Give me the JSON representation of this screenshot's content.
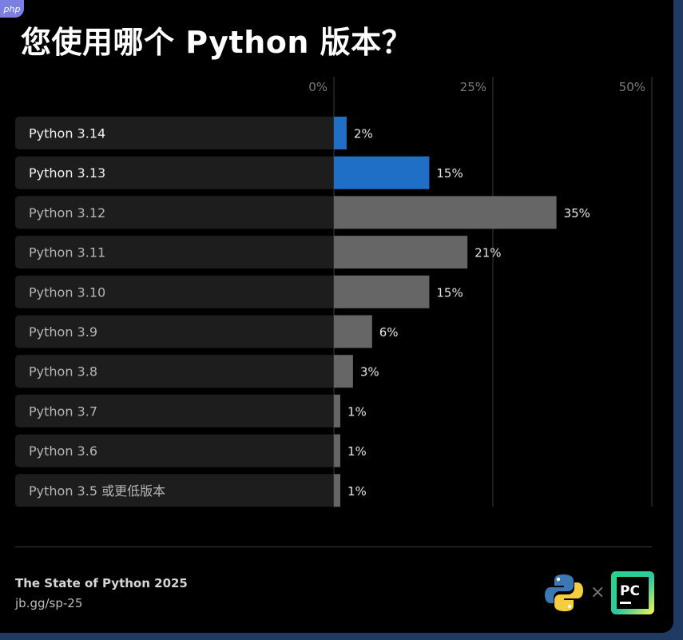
{
  "corner_logo": "php",
  "title": "您使用哪个 Python 版本？",
  "chart_data": {
    "type": "bar",
    "orientation": "horizontal",
    "title": "您使用哪个 Python 版本？",
    "xlim": [
      0,
      50
    ],
    "xticks": [
      "0%",
      "25%",
      "50%"
    ],
    "xtick_values": [
      0,
      25,
      50
    ],
    "categories": [
      "Python 3.14",
      "Python 3.13",
      "Python 3.12",
      "Python 3.11",
      "Python 3.10",
      "Python 3.9",
      "Python 3.8",
      "Python 3.7",
      "Python 3.6",
      "Python 3.5 或更低版本"
    ],
    "values": [
      2,
      15,
      35,
      21,
      15,
      6,
      3,
      1,
      1,
      1
    ],
    "value_labels": [
      "2%",
      "15%",
      "35%",
      "21%",
      "15%",
      "6%",
      "3%",
      "1%",
      "1%",
      "1%"
    ],
    "highlighted": [
      true,
      true,
      false,
      false,
      false,
      false,
      false,
      false,
      false,
      false
    ],
    "colors": {
      "highlight": "#1f6fc6",
      "default": "#666666",
      "row_background": "#1d1d1d",
      "label_highlight": "#f2f2f2",
      "label_default": "#b5b5b5",
      "grid": "#3a3a3a",
      "tick": "#7a7a7a"
    }
  },
  "footer": {
    "title": "The State of Python 2025",
    "link": "jb.gg/sp-25",
    "separator": "×",
    "logo_text": "PC"
  }
}
